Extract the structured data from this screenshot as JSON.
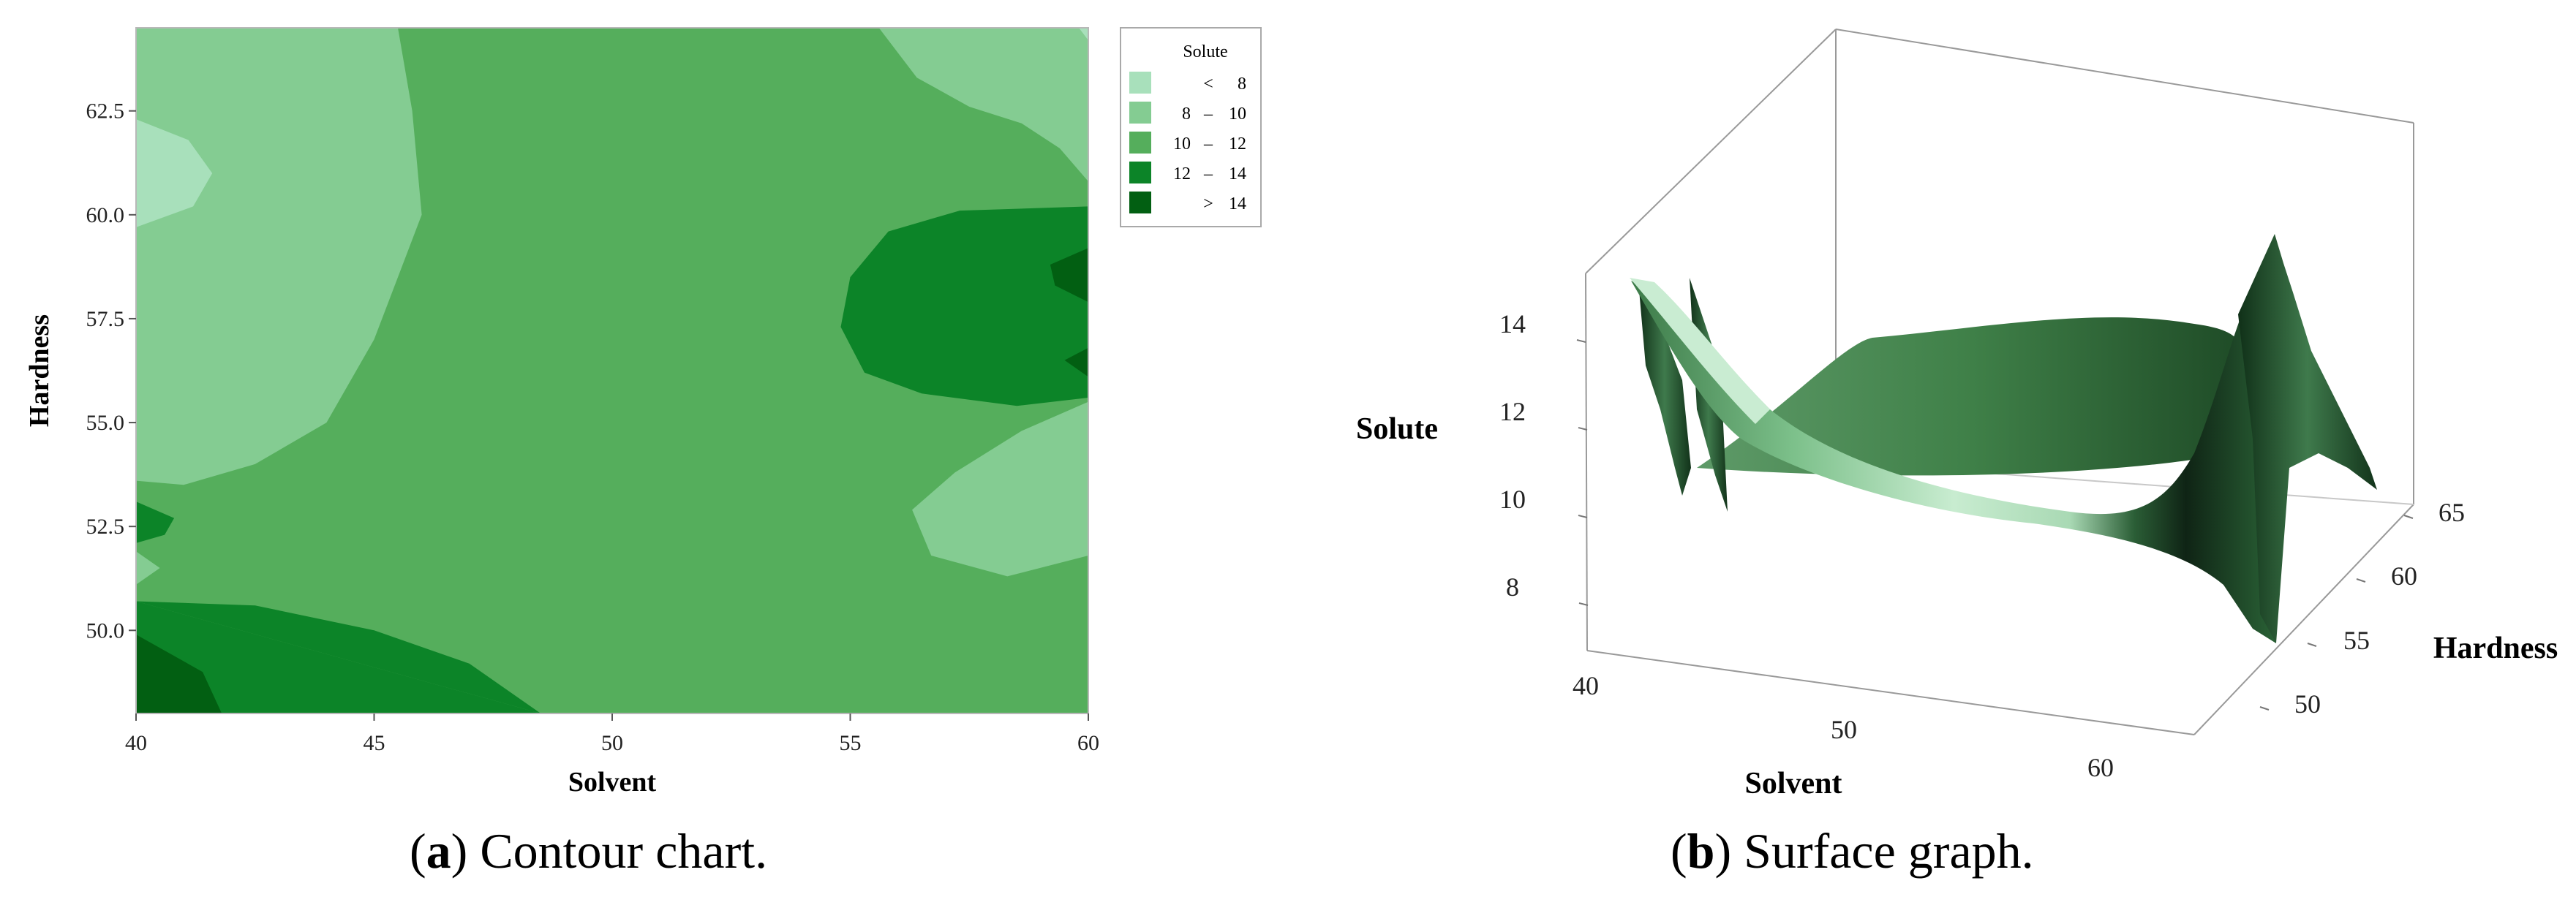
{
  "chart_data": [
    {
      "type": "heatmap",
      "subtype": "filled-contour",
      "xlabel": "Solvent",
      "ylabel": "Hardness",
      "xlim": [
        40,
        60
      ],
      "ylim": [
        48,
        64.5
      ],
      "x_ticks": [
        "40",
        "45",
        "50",
        "55",
        "60"
      ],
      "y_ticks": [
        "50.0",
        "52.5",
        "55.0",
        "57.5",
        "60.0",
        "62.5"
      ],
      "legend": {
        "title": "Solute",
        "position": "right",
        "levels": [
          {
            "op": "<",
            "lo": "",
            "hi": "8",
            "color": "#a8e0bb"
          },
          {
            "op": "–",
            "lo": "8",
            "hi": "10",
            "color": "#84cc92"
          },
          {
            "op": "–",
            "lo": "10",
            "hi": "12",
            "color": "#55ae5c"
          },
          {
            "op": "–",
            "lo": "12",
            "hi": "14",
            "color": "#0c8428"
          },
          {
            "op": ">",
            "lo": "",
            "hi": "14",
            "color": "#025f12"
          }
        ]
      },
      "regions": [
        {
          "level": 1,
          "pts": [
            [
              40,
              64.5
            ],
            [
              45.5,
              64.5
            ],
            [
              45.8,
              62.5
            ],
            [
              46,
              60
            ],
            [
              45,
              57
            ],
            [
              44,
              55
            ],
            [
              42.5,
              54
            ],
            [
              41,
              53.5
            ],
            [
              40,
              53.6
            ]
          ]
        },
        {
          "level": 0,
          "pts": [
            [
              40,
              62.3
            ],
            [
              41.1,
              61.8
            ],
            [
              41.6,
              61
            ],
            [
              41.2,
              60.2
            ],
            [
              40,
              59.7
            ]
          ]
        },
        {
          "level": 1,
          "pts": [
            [
              55.6,
              64.5
            ],
            [
              60,
              64.5
            ],
            [
              60,
              60.8
            ],
            [
              59.4,
              61.6
            ],
            [
              58.6,
              62.2
            ],
            [
              57.5,
              62.6
            ],
            [
              56.4,
              63.3
            ]
          ]
        },
        {
          "level": 0,
          "pts": [
            [
              59.8,
              64.5
            ],
            [
              60,
              64.5
            ],
            [
              60,
              64.2
            ]
          ]
        },
        {
          "level": 1,
          "pts": [
            [
              60,
              55.5
            ],
            [
              58.6,
              54.8
            ],
            [
              57.2,
              53.8
            ],
            [
              56.3,
              52.9
            ],
            [
              56.7,
              51.8
            ],
            [
              58.3,
              51.3
            ],
            [
              60,
              51.8
            ]
          ]
        },
        {
          "level": 3,
          "pts": [
            [
              60,
              60.2
            ],
            [
              57.3,
              60.1
            ],
            [
              55.8,
              59.6
            ],
            [
              55,
              58.5
            ],
            [
              54.8,
              57.3
            ],
            [
              55.3,
              56.2
            ],
            [
              56.5,
              55.7
            ],
            [
              58.5,
              55.4
            ],
            [
              60,
              55.6
            ]
          ]
        },
        {
          "level": 4,
          "pts": [
            [
              60,
              59.2
            ],
            [
              59.2,
              58.8
            ],
            [
              59.3,
              58.3
            ],
            [
              60,
              57.9
            ]
          ]
        },
        {
          "level": 4,
          "pts": [
            [
              60,
              56.8
            ],
            [
              59.5,
              56.5
            ],
            [
              60,
              56.1
            ]
          ]
        },
        {
          "level": 3,
          "pts": [
            [
              40,
              53.1
            ],
            [
              40.8,
              52.7
            ],
            [
              40.6,
              52.3
            ],
            [
              40,
              52.1
            ]
          ]
        },
        {
          "level": 1,
          "pts": [
            [
              40,
              51.9
            ],
            [
              40.5,
              51.5
            ],
            [
              40,
              51.1
            ]
          ]
        },
        {
          "level": 3,
          "pts": [
            [
              40,
              50.7
            ],
            [
              42.5,
              50.6
            ],
            [
              45,
              50
            ],
            [
              47,
              49.2
            ],
            [
              48.5,
              48
            ]
          ]
        },
        {
          "level": 3,
          "pts": [
            [
              40,
              48
            ],
            [
              48.5,
              48
            ],
            [
              40,
              50.7
            ]
          ]
        },
        {
          "level": 4,
          "pts": [
            [
              40,
              49.9
            ],
            [
              41.4,
              49
            ],
            [
              41.8,
              48
            ],
            [
              40,
              48
            ]
          ]
        }
      ]
    },
    {
      "type": "surface",
      "zlabel": "Solute",
      "xlabel": "Solvent",
      "ylabel": "Hardness",
      "z_ticks": [
        "14",
        "12",
        "10",
        "8"
      ],
      "x_ticks": [
        "40",
        "50",
        "60"
      ],
      "y_ticks": [
        "65",
        "60",
        "55",
        "50"
      ]
    }
  ],
  "captions": {
    "a": {
      "letter": "a",
      "text": " Contour chart."
    },
    "b": {
      "letter": "b",
      "text": " Surface graph."
    }
  }
}
